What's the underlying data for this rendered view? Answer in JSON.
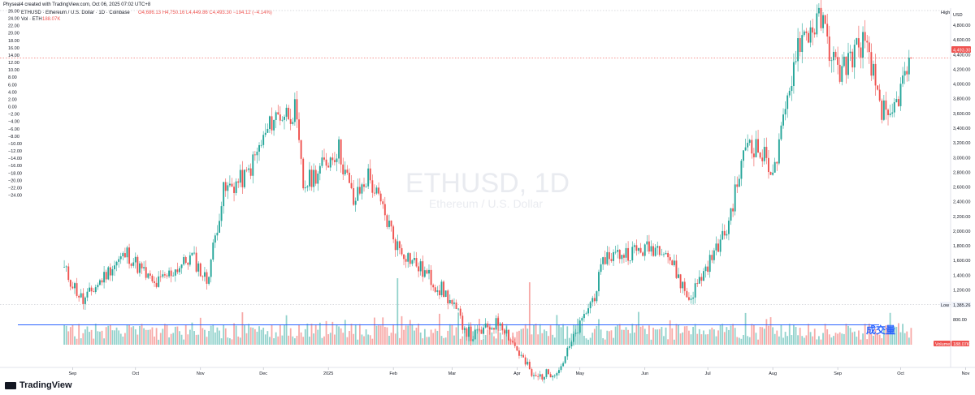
{
  "header": {
    "publisher": "Physeal4 created with TradingView.com, Oct 06, 2025 07:02 UTC+8",
    "symbol": "ETHUSD · Ethereum / U.S. Dollar · 1D · Coinbase",
    "ohlc": "O4,686.13  H4,750.16  L4,449.86  C4,493.30  −194.12 (−4.14%)",
    "vol_line": "Vol 188.07K  −194.12 (−4.14%)",
    "vol_label": "Vol · ETH",
    "vol_value": "188.07K"
  },
  "watermark": {
    "symbol": "ETHUSD, 1D",
    "name": "Ethereum / U.S. Dollar"
  },
  "annotation": "成交量",
  "badges": {
    "high": "High",
    "currency": "USD",
    "price": "4,493.30",
    "low": "Low",
    "low_value": "1,385.26",
    "volume": "Volume",
    "volume_value": "188.07K"
  },
  "brand": "TradingView",
  "colors": {
    "up": "#26a69a",
    "down": "#ef5350",
    "up_vol": "#92d2cc",
    "down_vol": "#f7a9a7",
    "line": "#2962ff"
  },
  "chart_data": {
    "type": "candlestick",
    "series": [
      {
        "name": "ETHUSD",
        "kind": "candlestick",
        "points": [
          {
            "date": "2024-08-28",
            "close": 2530
          },
          {
            "date": "2024-09-06",
            "close": 2230
          },
          {
            "date": "2024-09-20",
            "close": 2560
          },
          {
            "date": "2024-09-27",
            "close": 2680
          },
          {
            "date": "2024-10-10",
            "close": 2380
          },
          {
            "date": "2024-10-28",
            "close": 2650
          },
          {
            "date": "2024-11-04",
            "close": 2420
          },
          {
            "date": "2024-11-12",
            "close": 3250
          },
          {
            "date": "2024-11-23",
            "close": 3400
          },
          {
            "date": "2024-12-06",
            "close": 3950
          },
          {
            "date": "2024-12-16",
            "close": 4000
          },
          {
            "date": "2024-12-20",
            "close": 3300
          },
          {
            "date": "2025-01-06",
            "close": 3650
          },
          {
            "date": "2025-01-13",
            "close": 3150
          },
          {
            "date": "2025-01-20",
            "close": 3400
          },
          {
            "date": "2025-02-03",
            "close": 2750
          },
          {
            "date": "2025-02-26",
            "close": 2300
          },
          {
            "date": "2025-03-10",
            "close": 1900
          },
          {
            "date": "2025-03-24",
            "close": 2050
          },
          {
            "date": "2025-04-09",
            "close": 1520
          },
          {
            "date": "2025-04-21",
            "close": 1600
          },
          {
            "date": "2025-05-08",
            "close": 2300
          },
          {
            "date": "2025-05-13",
            "close": 2650
          },
          {
            "date": "2025-06-10",
            "close": 2750
          },
          {
            "date": "2025-06-22",
            "close": 2250
          },
          {
            "date": "2025-07-10",
            "close": 2900
          },
          {
            "date": "2025-07-20",
            "close": 3750
          },
          {
            "date": "2025-08-02",
            "close": 3450
          },
          {
            "date": "2025-08-13",
            "close": 4650
          },
          {
            "date": "2025-08-24",
            "close": 4850
          },
          {
            "date": "2025-09-01",
            "close": 4350
          },
          {
            "date": "2025-09-13",
            "close": 4650
          },
          {
            "date": "2025-09-25",
            "close": 3850
          },
          {
            "date": "2025-10-06",
            "close": 4493.3
          }
        ]
      }
    ],
    "left_axis": {
      "ticks": [
        "26.00",
        "24.00",
        "22.00",
        "20.00",
        "18.00",
        "16.00",
        "14.00",
        "12.00",
        "10.00",
        "8.00",
        "6.00",
        "4.00",
        "2.00",
        "0.00",
        "−2.00",
        "−4.00",
        "−6.00",
        "−8.00",
        "−10.00",
        "−12.00",
        "−14.00",
        "−16.00",
        "−18.00",
        "−20.00",
        "−22.00",
        "−24.00"
      ]
    },
    "right_axis": {
      "ticks": [
        "4,800.00",
        "4,600.00",
        "4,400.00",
        "4,200.00",
        "4,000.00",
        "3,800.00",
        "3,600.00",
        "3,400.00",
        "3,200.00",
        "3,000.00",
        "2,800.00",
        "2,600.00",
        "2,400.00",
        "2,200.00",
        "2,000.00",
        "1,800.00",
        "1,600.00",
        "1,400.00",
        "1,200.00",
        "1,000.00",
        "800.00"
      ],
      "range": [
        800,
        4950
      ]
    },
    "x_axis": {
      "labels": [
        "Sep",
        "Oct",
        "Nov",
        "Dec",
        "2025",
        "Feb",
        "Mar",
        "Apr",
        "May",
        "Jun",
        "Jul",
        "Aug",
        "Sep",
        "Oct",
        "Nov"
      ]
    },
    "volume": {
      "name": "Volume",
      "last": "188.07K",
      "ma_line": true
    },
    "last_price": 4493.3,
    "high_line": 4950,
    "low": 1385.26
  }
}
